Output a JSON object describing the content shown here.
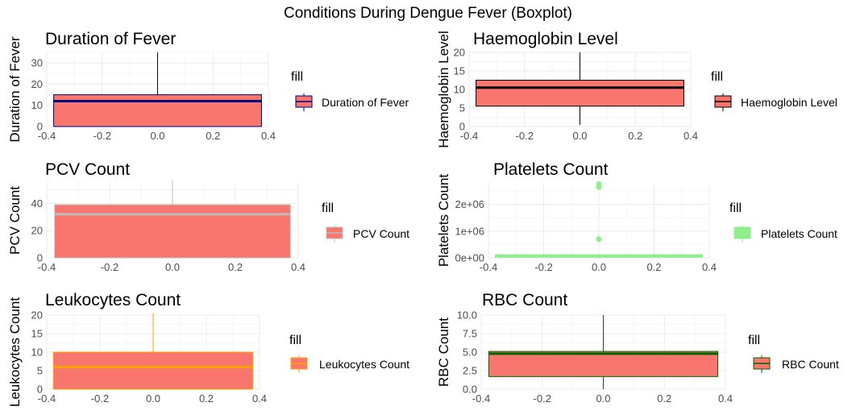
{
  "title": "Conditions During Dengue Fever (Boxplot)",
  "chart_data": [
    {
      "type": "boxplot",
      "title": "Duration of Fever",
      "ylabel": "Duration of Fever",
      "legend_title": "fill",
      "legend_label": "Duration of Fever",
      "xlim": [
        -0.4,
        0.4
      ],
      "ylim": [
        0,
        35
      ],
      "x_ticks": [
        "-0.4",
        "-0.2",
        "0.0",
        "0.2",
        "0.4"
      ],
      "y_ticks": [
        {
          "v": 0,
          "label": "0"
        },
        {
          "v": 10,
          "label": "10"
        },
        {
          "v": 20,
          "label": "20"
        },
        {
          "v": 30,
          "label": "30"
        }
      ],
      "box": {
        "q1": 0,
        "median": 12,
        "q3": 15,
        "whisker_low": 0,
        "whisker_high": 35,
        "x_min": -0.375,
        "x_max": 0.375
      },
      "outliers": [],
      "fill": "#f8766d",
      "line_color": "#000080"
    },
    {
      "type": "boxplot",
      "title": "Haemoglobin Level",
      "ylabel": "Haemoglobin Level",
      "legend_title": "fill",
      "legend_label": "Haemoglobin Level",
      "xlim": [
        -0.4,
        0.4
      ],
      "ylim": [
        0,
        20
      ],
      "x_ticks": [
        "-0.4",
        "-0.2",
        "0.0",
        "0.2",
        "0.4"
      ],
      "y_ticks": [
        {
          "v": 0,
          "label": "0"
        },
        {
          "v": 5,
          "label": "5"
        },
        {
          "v": 10,
          "label": "10"
        },
        {
          "v": 15,
          "label": "15"
        },
        {
          "v": 20,
          "label": "20"
        }
      ],
      "box": {
        "q1": 5.5,
        "median": 10.5,
        "q3": 12.5,
        "whisker_low": 0.5,
        "whisker_high": 20,
        "x_min": -0.375,
        "x_max": 0.375
      },
      "outliers": [],
      "fill": "#f8766d",
      "line_color": "#000000"
    },
    {
      "type": "boxplot",
      "title": "PCV Count",
      "ylabel": "PCV Count",
      "legend_title": "fill",
      "legend_label": "PCV Count",
      "xlim": [
        -0.4,
        0.4
      ],
      "ylim": [
        0,
        55
      ],
      "x_ticks": [
        "-0.4",
        "-0.2",
        "0.0",
        "0.2",
        "0.4"
      ],
      "y_ticks": [
        {
          "v": 0,
          "label": "0"
        },
        {
          "v": 20,
          "label": "20"
        },
        {
          "v": 40,
          "label": "40"
        }
      ],
      "box": {
        "q1": 0,
        "median": 32,
        "q3": 39,
        "whisker_low": 0,
        "whisker_high": 57,
        "x_min": -0.375,
        "x_max": 0.375
      },
      "outliers": [],
      "fill": "#f8766d",
      "line_color": "#bdbdbd"
    },
    {
      "type": "boxplot",
      "title": "Platelets Count",
      "ylabel": "Platelets Count",
      "legend_title": "fill",
      "legend_label": "Platelets Count",
      "xlim": [
        -0.4,
        0.4
      ],
      "ylim": [
        0,
        2800000
      ],
      "x_ticks": [
        "-0.4",
        "-0.2",
        "0.0",
        "0.2",
        "0.4"
      ],
      "y_ticks": [
        {
          "v": 0,
          "label": "0e+00"
        },
        {
          "v": 1000000,
          "label": "1e+06"
        },
        {
          "v": 2000000,
          "label": "2e+06"
        }
      ],
      "box": {
        "q1": 20000,
        "median": 80000,
        "q3": 120000,
        "whisker_low": 0,
        "whisker_high": 130000,
        "x_min": -0.375,
        "x_max": 0.375
      },
      "outliers": [
        700000,
        2640000,
        2760000
      ],
      "fill": "#90ee90",
      "line_color": "#90ee90"
    },
    {
      "type": "boxplot",
      "title": "Leukocytes Count",
      "ylabel": "Leukocytes Count",
      "legend_title": "fill",
      "legend_label": "Leukocytes Count",
      "xlim": [
        -0.4,
        0.4
      ],
      "ylim": [
        0,
        20
      ],
      "x_ticks": [
        "-0.4",
        "-0.2",
        "0.0",
        "0.2",
        "0.4"
      ],
      "y_ticks": [
        {
          "v": 0,
          "label": "0"
        },
        {
          "v": 5,
          "label": "5"
        },
        {
          "v": 10,
          "label": "10"
        },
        {
          "v": 15,
          "label": "15"
        },
        {
          "v": 20,
          "label": "20"
        }
      ],
      "box": {
        "q1": 0,
        "median": 6,
        "q3": 10,
        "whisker_low": 0,
        "whisker_high": 20.5,
        "x_min": -0.375,
        "x_max": 0.375
      },
      "outliers": [],
      "fill": "#f8766d",
      "line_color": "#ffa500"
    },
    {
      "type": "boxplot",
      "title": "RBC Count",
      "ylabel": "RBC Count",
      "legend_title": "fill",
      "legend_label": "RBC Count",
      "xlim": [
        -0.4,
        0.4
      ],
      "ylim": [
        0,
        10
      ],
      "x_ticks": [
        "-0.4",
        "-0.2",
        "0.0",
        "0.2",
        "0.4"
      ],
      "y_ticks": [
        {
          "v": 0,
          "label": "0.0"
        },
        {
          "v": 2.5,
          "label": "2.5"
        },
        {
          "v": 5,
          "label": "5.0"
        },
        {
          "v": 7.5,
          "label": "7.5"
        },
        {
          "v": 10,
          "label": "10.0"
        }
      ],
      "box": {
        "q1": 1.7,
        "median": 4.8,
        "q3": 5.1,
        "whisker_low": 0,
        "whisker_high": 10,
        "x_min": -0.375,
        "x_max": 0.375
      },
      "outliers": [],
      "fill": "#f8766d",
      "line_color": "#006400"
    }
  ]
}
